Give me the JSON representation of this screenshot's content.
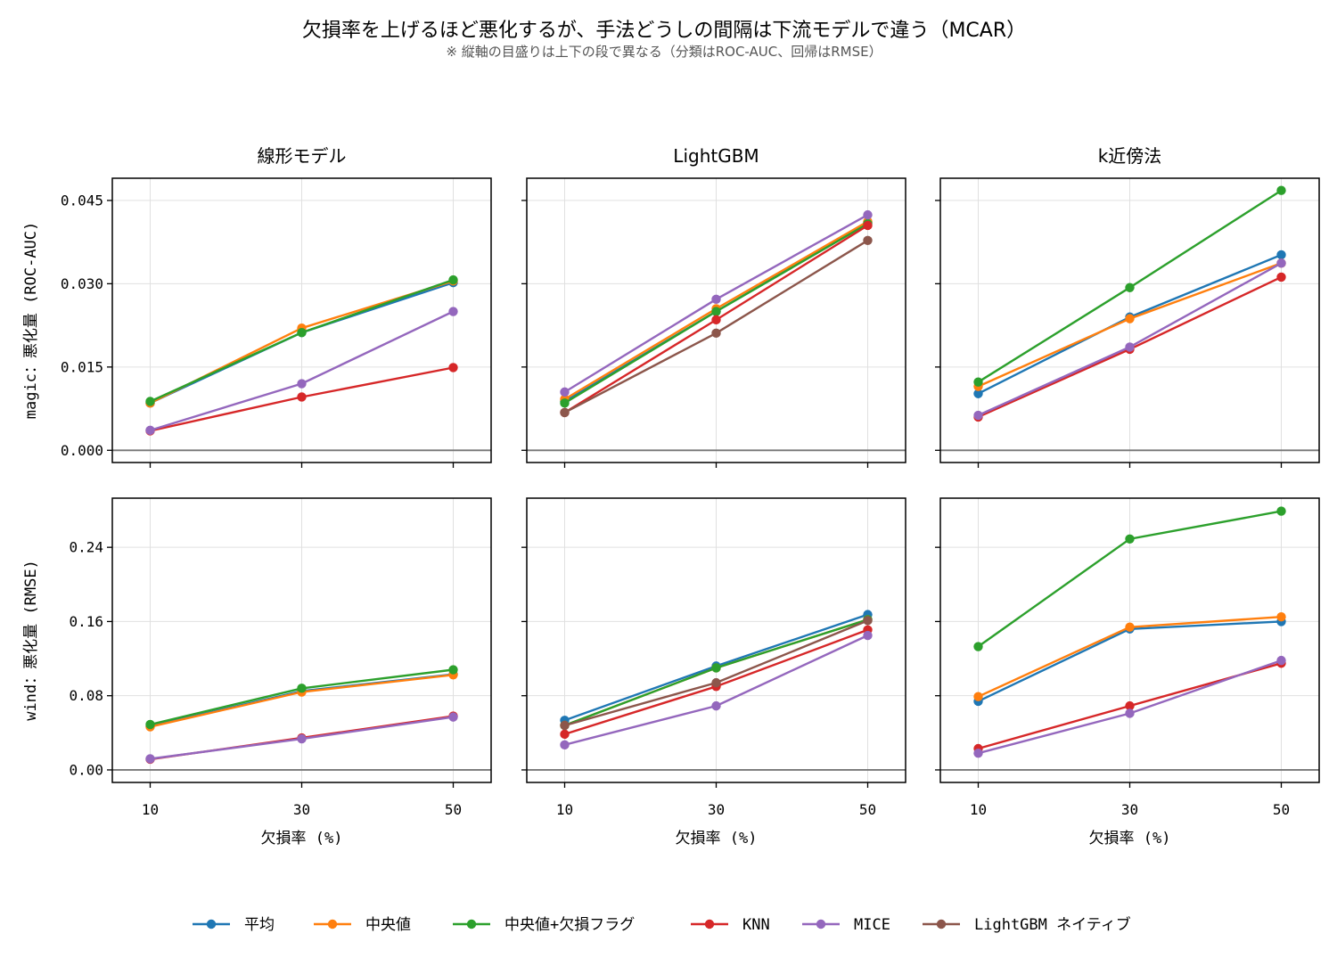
{
  "title": "欠損率を上げるほど悪化するが、手法どうしの間隔は下流モデルで違う（MCAR）",
  "subtitle": "※ 縦軸の目盛りは上下の段で異なる（分類はROC-AUC、回帰はRMSE）",
  "colors": {
    "平均": "#1f77b4",
    "中央値": "#ff7f0e",
    "中央値+欠損フラグ": "#2ca02c",
    "KNN": "#d62728",
    "MICE": "#9467bd",
    "LightGBM ネイティブ": "#8c564b"
  },
  "legend": {
    "placement": "bottom-center",
    "items": [
      "平均",
      "中央値",
      "中央値+欠損フラグ",
      "KNN",
      "MICE",
      "LightGBM ネイティブ"
    ]
  },
  "chart_data": [
    {
      "type": "line",
      "row": 0,
      "col": 0,
      "title": "線形モデル",
      "ylabel": "magic：悪化量 (ROC-AUC)",
      "xlabel": "",
      "x": [
        10,
        30,
        50
      ],
      "xticks": [
        "10",
        "30",
        "50"
      ],
      "show_xticklabels": false,
      "ylim": [
        -0.0022,
        0.049
      ],
      "yticks": [
        "0.000",
        "0.015",
        "0.030",
        "0.045"
      ],
      "yticks_values": [
        0,
        0.015,
        0.03,
        0.045
      ],
      "grid": true,
      "zero_line": true,
      "series": [
        {
          "name": "平均",
          "values": [
            0.0085,
            0.0212,
            0.0302
          ]
        },
        {
          "name": "中央値",
          "values": [
            0.0085,
            0.022,
            0.0305
          ]
        },
        {
          "name": "中央値+欠損フラグ",
          "values": [
            0.0088,
            0.0212,
            0.0307
          ]
        },
        {
          "name": "KNN",
          "values": [
            0.0035,
            0.0096,
            0.0149
          ]
        },
        {
          "name": "MICE",
          "values": [
            0.0036,
            0.012,
            0.025
          ]
        }
      ]
    },
    {
      "type": "line",
      "row": 0,
      "col": 1,
      "title": "LightGBM",
      "ylabel": "",
      "xlabel": "",
      "x": [
        10,
        30,
        50
      ],
      "xticks": [
        "10",
        "30",
        "50"
      ],
      "show_xticklabels": false,
      "ylim": [
        -0.0022,
        0.049
      ],
      "yticks": [],
      "yticks_values": [
        0,
        0.015,
        0.03,
        0.045
      ],
      "grid": true,
      "zero_line": true,
      "series": [
        {
          "name": "平均",
          "values": [
            0.0088,
            0.025,
            0.041
          ]
        },
        {
          "name": "中央値",
          "values": [
            0.0092,
            0.0255,
            0.0412
          ]
        },
        {
          "name": "中央値+欠損フラグ",
          "values": [
            0.0085,
            0.025,
            0.0408
          ]
        },
        {
          "name": "KNN",
          "values": [
            0.0068,
            0.0235,
            0.0405
          ]
        },
        {
          "name": "MICE",
          "values": [
            0.0105,
            0.0272,
            0.0424
          ]
        },
        {
          "name": "LightGBM ネイティブ",
          "values": [
            0.0068,
            0.0211,
            0.0378
          ]
        }
      ]
    },
    {
      "type": "line",
      "row": 0,
      "col": 2,
      "title": "k近傍法",
      "ylabel": "",
      "xlabel": "",
      "x": [
        10,
        30,
        50
      ],
      "xticks": [
        "10",
        "30",
        "50"
      ],
      "show_xticklabels": false,
      "ylim": [
        -0.0022,
        0.049
      ],
      "yticks": [],
      "yticks_values": [
        0,
        0.015,
        0.03,
        0.045
      ],
      "grid": true,
      "zero_line": true,
      "series": [
        {
          "name": "平均",
          "values": [
            0.0102,
            0.024,
            0.0352
          ]
        },
        {
          "name": "中央値",
          "values": [
            0.0115,
            0.0237,
            0.0337
          ]
        },
        {
          "name": "中央値+欠損フラグ",
          "values": [
            0.0123,
            0.0293,
            0.0468
          ]
        },
        {
          "name": "KNN",
          "values": [
            0.006,
            0.0182,
            0.0312
          ]
        },
        {
          "name": "MICE",
          "values": [
            0.0063,
            0.0186,
            0.0337
          ]
        }
      ]
    },
    {
      "type": "line",
      "row": 1,
      "col": 0,
      "title": "",
      "ylabel": "wind：悪化量 (RMSE)",
      "xlabel": "欠損率 (%)",
      "x": [
        10,
        30,
        50
      ],
      "xticks": [
        "10",
        "30",
        "50"
      ],
      "show_xticklabels": true,
      "ylim": [
        -0.0135,
        0.293
      ],
      "yticks": [
        "0.00",
        "0.08",
        "0.16",
        "0.24"
      ],
      "yticks_values": [
        0,
        0.08,
        0.16,
        0.24
      ],
      "grid": true,
      "zero_line": true,
      "series": [
        {
          "name": "平均",
          "values": [
            0.047,
            0.085,
            0.103
          ]
        },
        {
          "name": "中央値",
          "values": [
            0.0465,
            0.084,
            0.1025
          ]
        },
        {
          "name": "中央値+欠損フラグ",
          "values": [
            0.049,
            0.088,
            0.108
          ]
        },
        {
          "name": "KNN",
          "values": [
            0.0115,
            0.0345,
            0.058
          ]
        },
        {
          "name": "MICE",
          "values": [
            0.012,
            0.0335,
            0.057
          ]
        }
      ]
    },
    {
      "type": "line",
      "row": 1,
      "col": 1,
      "title": "",
      "ylabel": "",
      "xlabel": "欠損率 (%)",
      "x": [
        10,
        30,
        50
      ],
      "xticks": [
        "10",
        "30",
        "50"
      ],
      "show_xticklabels": true,
      "ylim": [
        -0.0135,
        0.293
      ],
      "yticks": [],
      "yticks_values": [
        0,
        0.08,
        0.16,
        0.24
      ],
      "grid": true,
      "zero_line": true,
      "series": [
        {
          "name": "平均",
          "values": [
            0.0535,
            0.112,
            0.1675
          ]
        },
        {
          "name": "中央値",
          "values": [
            0.048,
            0.11,
            0.162
          ]
        },
        {
          "name": "中央値+欠損フラグ",
          "values": [
            0.048,
            0.11,
            0.162
          ]
        },
        {
          "name": "KNN",
          "values": [
            0.0385,
            0.09,
            0.151
          ]
        },
        {
          "name": "MICE",
          "values": [
            0.027,
            0.069,
            0.145
          ]
        },
        {
          "name": "LightGBM ネイティブ",
          "values": [
            0.048,
            0.094,
            0.161
          ]
        }
      ]
    },
    {
      "type": "line",
      "row": 1,
      "col": 2,
      "title": "",
      "ylabel": "",
      "xlabel": "欠損率 (%)",
      "x": [
        10,
        30,
        50
      ],
      "xticks": [
        "10",
        "30",
        "50"
      ],
      "show_xticklabels": true,
      "ylim": [
        -0.0135,
        0.293
      ],
      "yticks": [],
      "yticks_values": [
        0,
        0.08,
        0.16,
        0.24
      ],
      "grid": true,
      "zero_line": true,
      "series": [
        {
          "name": "平均",
          "values": [
            0.074,
            0.152,
            0.16
          ]
        },
        {
          "name": "中央値",
          "values": [
            0.079,
            0.154,
            0.165
          ]
        },
        {
          "name": "中央値+欠損フラグ",
          "values": [
            0.133,
            0.249,
            0.279
          ]
        },
        {
          "name": "KNN",
          "values": [
            0.023,
            0.069,
            0.115
          ]
        },
        {
          "name": "MICE",
          "values": [
            0.018,
            0.061,
            0.118
          ]
        }
      ]
    }
  ]
}
